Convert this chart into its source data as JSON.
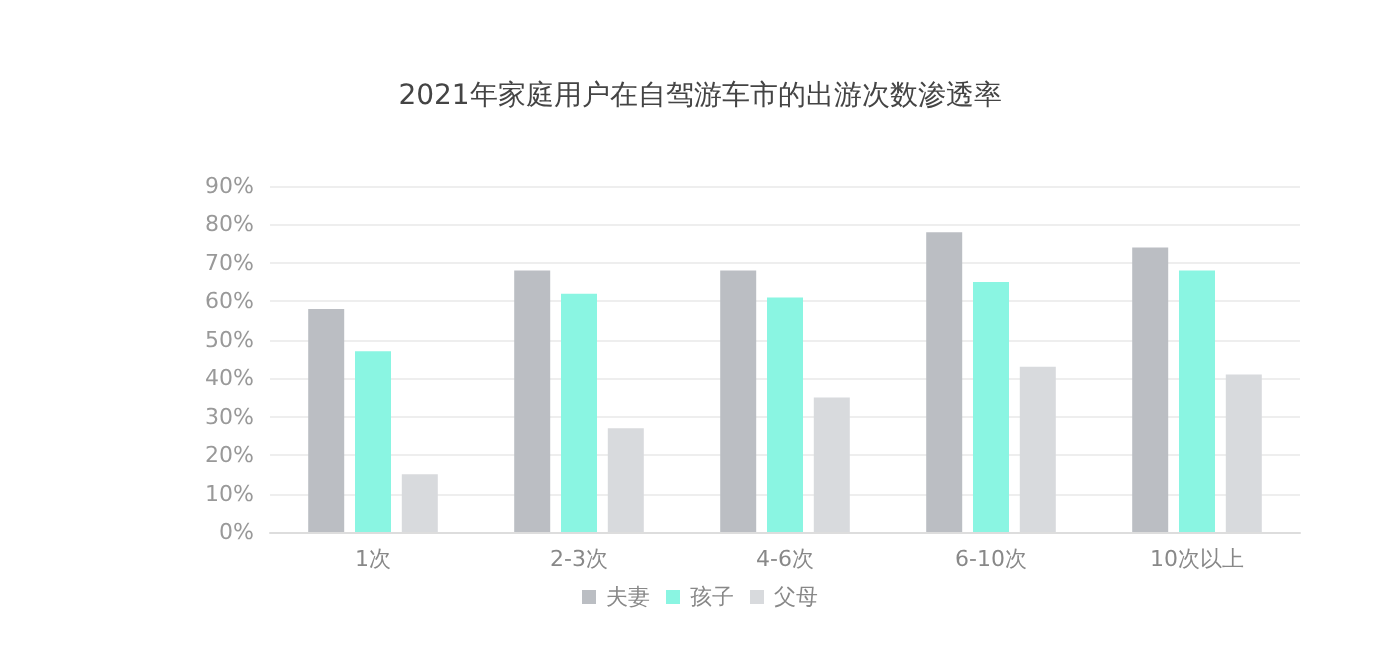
{
  "chart_data": {
    "type": "bar",
    "title": "2021年家庭用户在自驾游车市的出游次数渗透率",
    "categories": [
      "1次",
      "2-3次",
      "4-6次",
      "6-10次",
      "10次以上"
    ],
    "series": [
      {
        "name": "夫妻",
        "color": "#bbbec3",
        "values": [
          58,
          68,
          68,
          78,
          74
        ]
      },
      {
        "name": "孩子",
        "color": "#8af5e2",
        "values": [
          47,
          62,
          61,
          65,
          68
        ]
      },
      {
        "name": "父母",
        "color": "#d8dadd",
        "values": [
          15,
          27,
          35,
          43,
          41
        ]
      }
    ],
    "ylim": [
      0,
      90
    ],
    "yticks": [
      {
        "value": 0,
        "label": "0%"
      },
      {
        "value": 10,
        "label": "10%"
      },
      {
        "value": 20,
        "label": "20%"
      },
      {
        "value": 30,
        "label": "30%"
      },
      {
        "value": 40,
        "label": "40%"
      },
      {
        "value": 50,
        "label": "50%"
      },
      {
        "value": 60,
        "label": "60%"
      },
      {
        "value": 70,
        "label": "70%"
      },
      {
        "value": 80,
        "label": "80%"
      },
      {
        "value": 90,
        "label": "90%"
      }
    ],
    "grid": "y",
    "legend": "bottom"
  }
}
